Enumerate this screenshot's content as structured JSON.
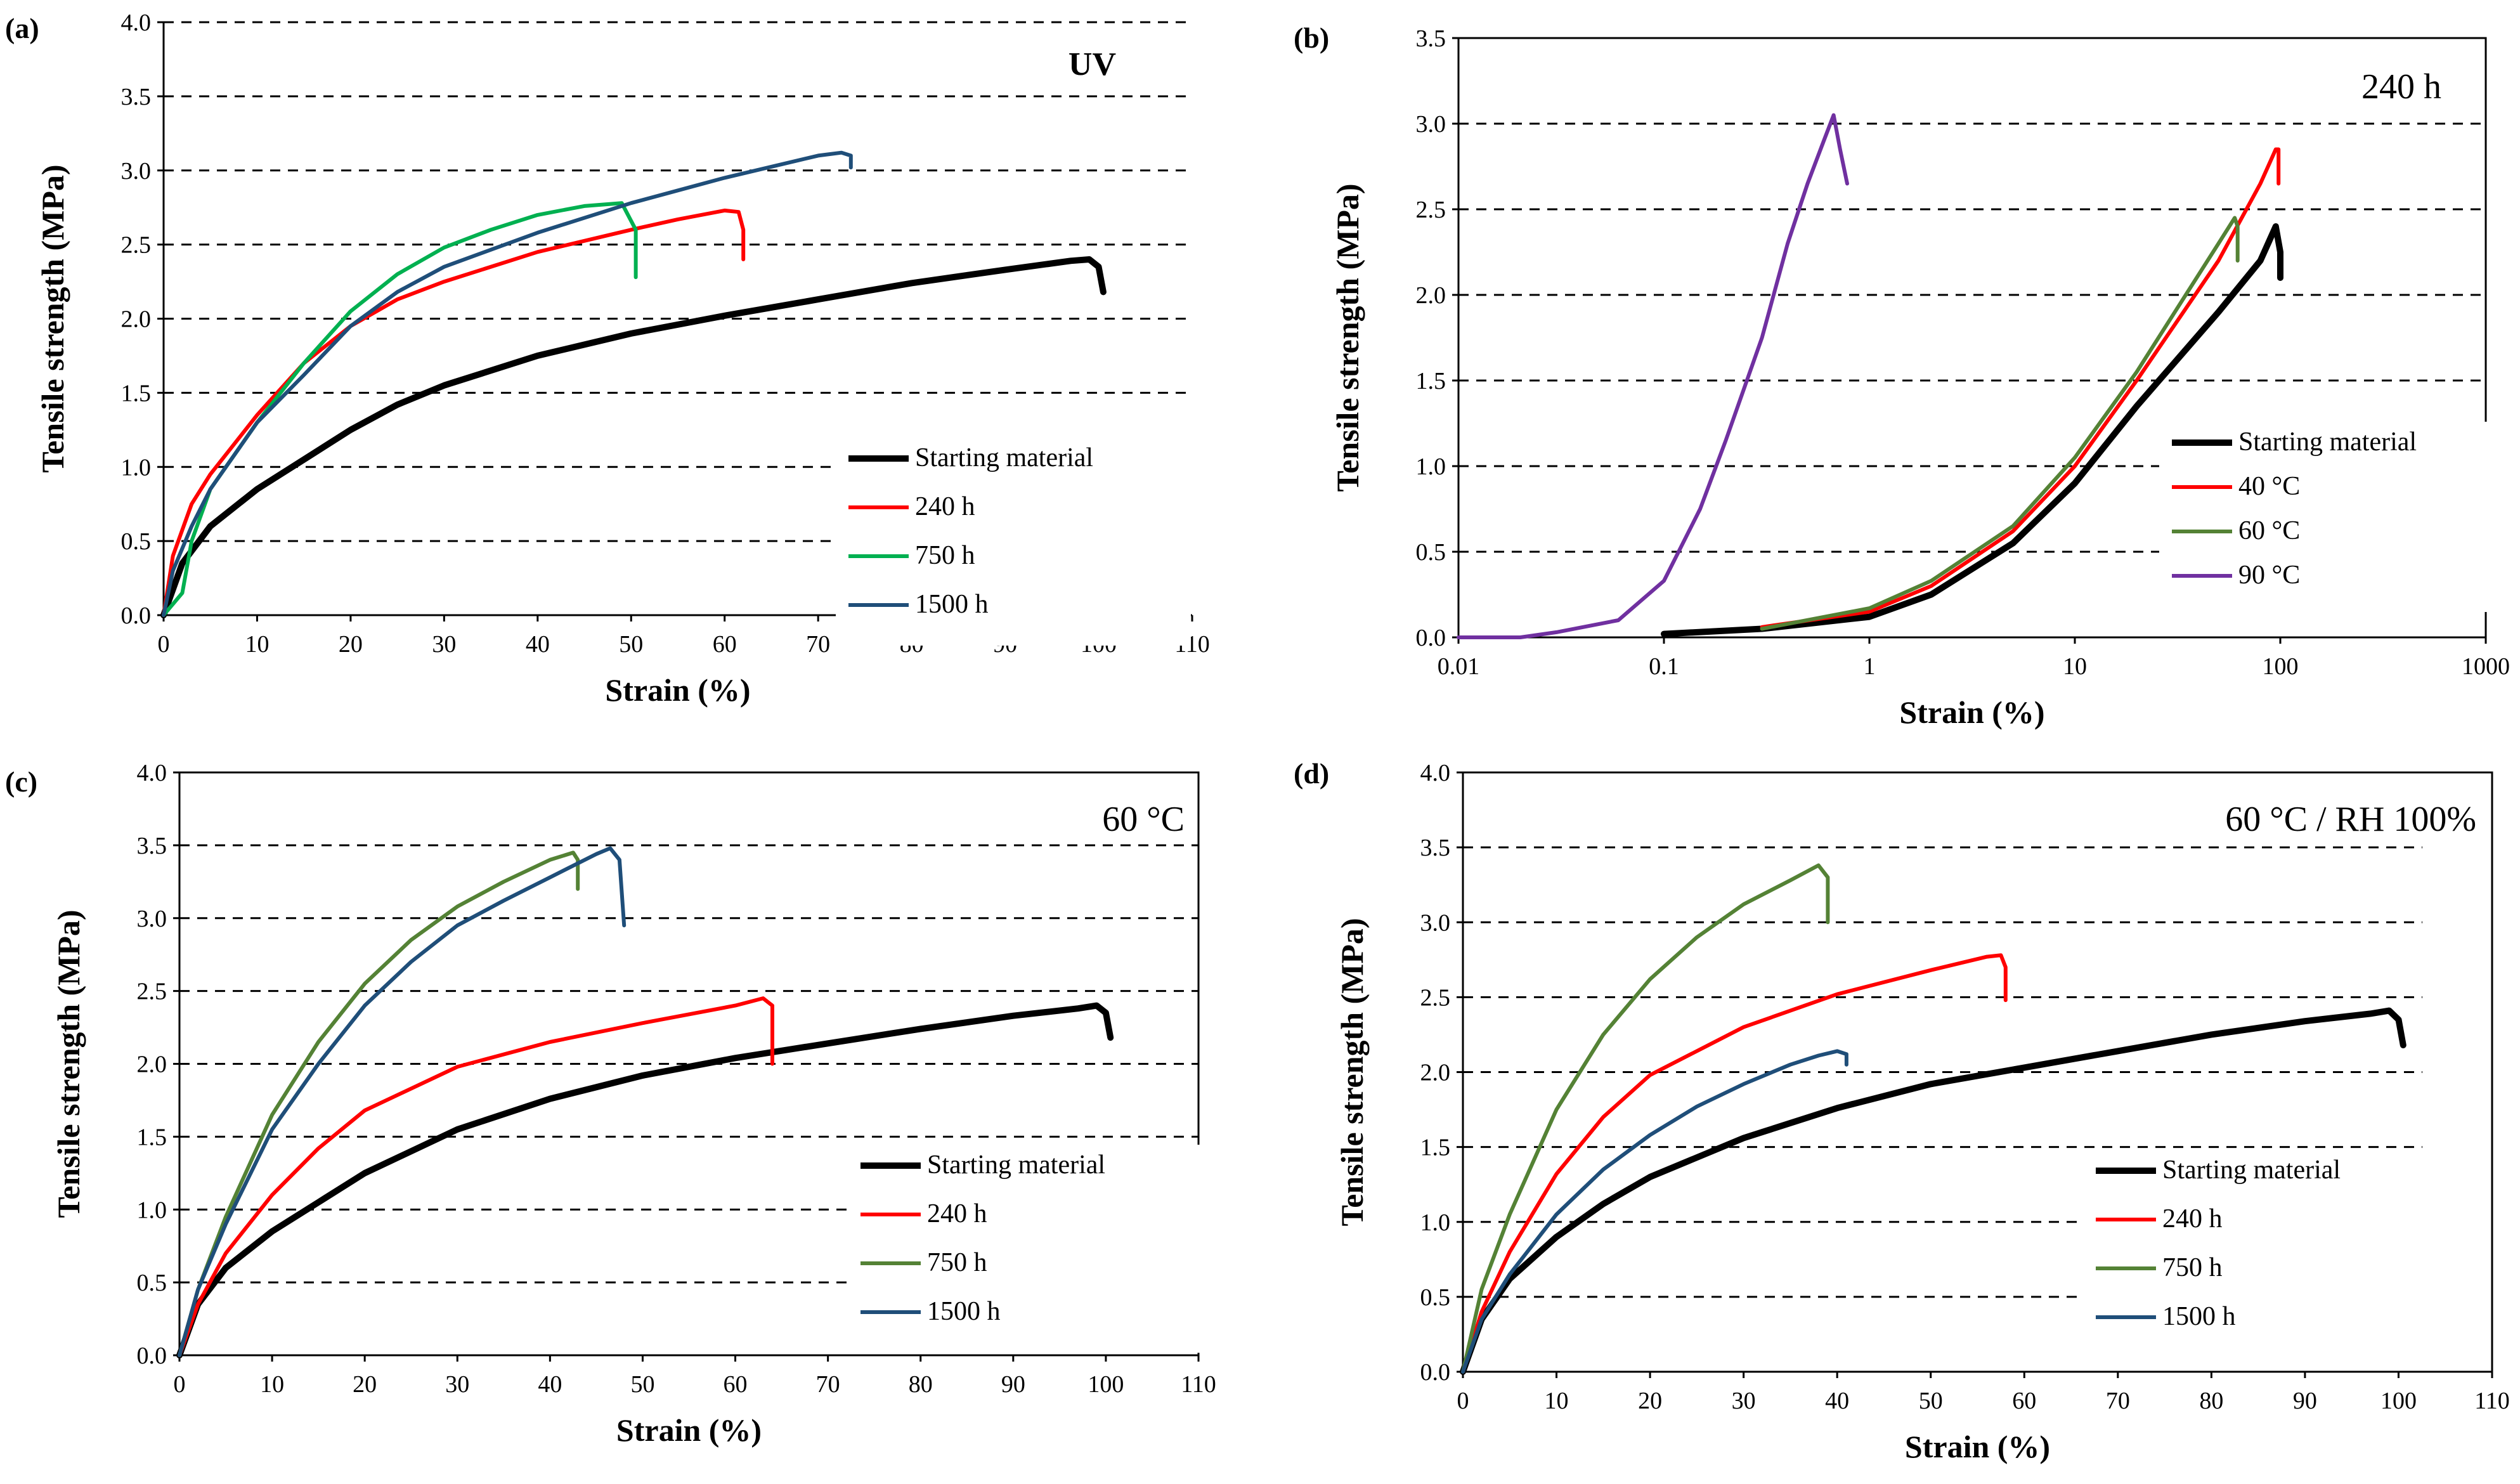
{
  "chart_data": [
    {
      "panel": "(a)",
      "type": "line",
      "annotation": "UV",
      "xlabel": "Strain (%)",
      "ylabel": "Tensile strength (MPa)",
      "xscale": "linear",
      "xlim": [
        0,
        110
      ],
      "ylim": [
        0,
        4.0
      ],
      "xticks": [
        "0",
        "10",
        "20",
        "30",
        "40",
        "50",
        "60",
        "70",
        "80",
        "90",
        "100",
        "110"
      ],
      "yticks": [
        "0.0",
        "0.5",
        "1.0",
        "1.5",
        "2.0",
        "2.5",
        "3.0",
        "3.5",
        "4.0"
      ],
      "grid": "horizontal dashed",
      "legend_position": "bottom-right",
      "series": [
        {
          "name": "Starting material",
          "color": "#000000",
          "width": "thick",
          "x": [
            0,
            2,
            5,
            10,
            15,
            20,
            25,
            30,
            40,
            50,
            60,
            70,
            80,
            90,
            97,
            99,
            100,
            100.5
          ],
          "y": [
            0,
            0.35,
            0.6,
            0.85,
            1.05,
            1.25,
            1.42,
            1.55,
            1.75,
            1.9,
            2.02,
            2.13,
            2.24,
            2.33,
            2.39,
            2.4,
            2.35,
            2.18
          ]
        },
        {
          "name": "240 h",
          "color": "#ff0000",
          "x": [
            0,
            1,
            3,
            5,
            10,
            15,
            20,
            25,
            30,
            40,
            50,
            55,
            60,
            61.5,
            62,
            62
          ],
          "y": [
            0,
            0.4,
            0.75,
            0.95,
            1.35,
            1.7,
            1.95,
            2.13,
            2.25,
            2.45,
            2.6,
            2.67,
            2.73,
            2.72,
            2.6,
            2.4
          ]
        },
        {
          "name": "750 h",
          "color": "#00b050",
          "x": [
            0,
            2,
            3,
            5,
            10,
            15,
            20,
            25,
            30,
            35,
            40,
            45,
            49,
            50.5,
            50.5
          ],
          "y": [
            0,
            0.15,
            0.5,
            0.85,
            1.3,
            1.7,
            2.05,
            2.3,
            2.48,
            2.6,
            2.7,
            2.76,
            2.78,
            2.6,
            2.28
          ]
        },
        {
          "name": "1500 h",
          "color": "#1f4e79",
          "x": [
            0,
            1,
            3,
            5,
            10,
            15,
            20,
            25,
            30,
            40,
            50,
            60,
            70,
            72.5,
            73.5,
            73.5
          ],
          "y": [
            0,
            0.3,
            0.6,
            0.85,
            1.3,
            1.62,
            1.95,
            2.18,
            2.35,
            2.58,
            2.78,
            2.95,
            3.1,
            3.12,
            3.1,
            3.02
          ]
        }
      ]
    },
    {
      "panel": "(b)",
      "type": "line",
      "annotation": "240 h",
      "xlabel": "Strain (%)",
      "ylabel": "Tensile strength (MPa)",
      "xscale": "log",
      "xlim": [
        0.01,
        1000
      ],
      "ylim": [
        0,
        3.5
      ],
      "xticks": [
        "0.01",
        "0.1",
        "1",
        "10",
        "100",
        "1000"
      ],
      "yticks": [
        "0.0",
        "0.5",
        "1.0",
        "1.5",
        "2.0",
        "2.5",
        "3.0",
        "3.5"
      ],
      "grid": "horizontal dashed",
      "legend_position": "bottom-right",
      "series": [
        {
          "name": "Starting material",
          "color": "#000000",
          "width": "thick",
          "x": [
            0.1,
            0.3,
            1,
            2,
            5,
            10,
            20,
            50,
            80,
            95,
            100,
            100
          ],
          "y": [
            0.02,
            0.05,
            0.12,
            0.25,
            0.55,
            0.9,
            1.35,
            1.9,
            2.2,
            2.4,
            2.25,
            2.1
          ]
        },
        {
          "name": "40 °C",
          "color": "#ff0000",
          "x": [
            0.3,
            1,
            2,
            5,
            10,
            20,
            50,
            80,
            95,
            98,
            98
          ],
          "y": [
            0.06,
            0.15,
            0.3,
            0.62,
            1.0,
            1.5,
            2.2,
            2.65,
            2.85,
            2.85,
            2.65
          ]
        },
        {
          "name": "60 °C",
          "color": "#548235",
          "x": [
            0.3,
            1,
            2,
            5,
            10,
            20,
            50,
            60,
            62,
            62
          ],
          "y": [
            0.05,
            0.17,
            0.33,
            0.65,
            1.05,
            1.55,
            2.3,
            2.45,
            2.4,
            2.2
          ]
        },
        {
          "name": "90 °C",
          "color": "#7030a0",
          "x": [
            0.01,
            0.02,
            0.03,
            0.06,
            0.1,
            0.15,
            0.2,
            0.3,
            0.4,
            0.5,
            0.6,
            0.67,
            0.72,
            0.78
          ],
          "y": [
            0,
            0,
            0.03,
            0.1,
            0.33,
            0.75,
            1.15,
            1.75,
            2.3,
            2.65,
            2.9,
            3.05,
            2.85,
            2.65
          ]
        }
      ]
    },
    {
      "panel": "(c)",
      "type": "line",
      "annotation": "60 °C",
      "xlabel": "Strain (%)",
      "ylabel": "Tensile strength (MPa)",
      "xscale": "linear",
      "xlim": [
        0,
        110
      ],
      "ylim": [
        0,
        4.0
      ],
      "xticks": [
        "0",
        "10",
        "20",
        "30",
        "40",
        "50",
        "60",
        "70",
        "80",
        "90",
        "100",
        "110"
      ],
      "yticks": [
        "0.0",
        "0.5",
        "1.0",
        "1.5",
        "2.0",
        "2.5",
        "3.0",
        "3.5",
        "4.0"
      ],
      "grid": "horizontal dashed",
      "legend_position": "bottom-right",
      "series": [
        {
          "name": "Starting material",
          "color": "#000000",
          "width": "thick",
          "x": [
            0,
            2,
            5,
            10,
            15,
            20,
            30,
            40,
            50,
            60,
            70,
            80,
            90,
            97,
            99,
            100,
            100.5
          ],
          "y": [
            0,
            0.35,
            0.6,
            0.85,
            1.05,
            1.25,
            1.55,
            1.76,
            1.92,
            2.04,
            2.14,
            2.24,
            2.33,
            2.38,
            2.4,
            2.35,
            2.18
          ]
        },
        {
          "name": "240 h",
          "color": "#ff0000",
          "x": [
            0,
            2,
            5,
            10,
            15,
            20,
            30,
            40,
            50,
            60,
            63,
            64,
            64
          ],
          "y": [
            0,
            0.35,
            0.7,
            1.1,
            1.42,
            1.68,
            1.98,
            2.15,
            2.28,
            2.4,
            2.45,
            2.4,
            2.0
          ]
        },
        {
          "name": "750 h",
          "color": "#548235",
          "x": [
            0,
            2,
            5,
            10,
            15,
            20,
            25,
            30,
            35,
            40,
            42.5,
            43,
            43
          ],
          "y": [
            0,
            0.45,
            0.95,
            1.65,
            2.15,
            2.55,
            2.85,
            3.08,
            3.25,
            3.4,
            3.45,
            3.4,
            3.2
          ]
        },
        {
          "name": "1500 h",
          "color": "#1f4e79",
          "x": [
            0,
            2,
            5,
            10,
            15,
            20,
            25,
            30,
            35,
            40,
            45,
            46.5,
            47.5,
            48
          ],
          "y": [
            0,
            0.45,
            0.9,
            1.55,
            2.0,
            2.4,
            2.7,
            2.95,
            3.12,
            3.28,
            3.44,
            3.48,
            3.4,
            2.95
          ]
        }
      ]
    },
    {
      "panel": "(d)",
      "type": "line",
      "annotation": "60 °C / RH 100%",
      "xlabel": "Strain (%)",
      "ylabel": "Tensile strength (MPa)",
      "xscale": "linear",
      "xlim": [
        0,
        110
      ],
      "ylim": [
        0,
        4.0
      ],
      "xticks": [
        "0",
        "10",
        "20",
        "30",
        "40",
        "50",
        "60",
        "70",
        "80",
        "90",
        "100",
        "110"
      ],
      "yticks": [
        "0.0",
        "0.5",
        "1.0",
        "1.5",
        "2.0",
        "2.5",
        "3.0",
        "3.5",
        "4.0"
      ],
      "grid": "horizontal dashed",
      "legend_position": "bottom-right",
      "series": [
        {
          "name": "Starting material",
          "color": "#000000",
          "width": "thick",
          "x": [
            0,
            2,
            5,
            10,
            15,
            20,
            30,
            40,
            50,
            60,
            70,
            80,
            90,
            97,
            99,
            100,
            100.5
          ],
          "y": [
            0,
            0.35,
            0.62,
            0.9,
            1.12,
            1.3,
            1.56,
            1.76,
            1.92,
            2.03,
            2.14,
            2.25,
            2.34,
            2.39,
            2.41,
            2.35,
            2.18
          ]
        },
        {
          "name": "240 h",
          "color": "#ff0000",
          "x": [
            0,
            2,
            5,
            10,
            15,
            20,
            30,
            40,
            50,
            56,
            57.5,
            58,
            58
          ],
          "y": [
            0,
            0.4,
            0.8,
            1.32,
            1.7,
            1.98,
            2.3,
            2.52,
            2.68,
            2.77,
            2.78,
            2.7,
            2.48
          ]
        },
        {
          "name": "750 h",
          "color": "#548235",
          "x": [
            0,
            2,
            5,
            10,
            15,
            20,
            25,
            30,
            35,
            38,
            39,
            39
          ],
          "y": [
            0,
            0.55,
            1.05,
            1.75,
            2.25,
            2.62,
            2.9,
            3.12,
            3.28,
            3.38,
            3.3,
            3.0
          ]
        },
        {
          "name": "1500 h",
          "color": "#1f4e79",
          "x": [
            0,
            2,
            5,
            10,
            15,
            20,
            25,
            30,
            35,
            38,
            40,
            41,
            41
          ],
          "y": [
            0,
            0.35,
            0.65,
            1.05,
            1.35,
            1.58,
            1.77,
            1.92,
            2.05,
            2.11,
            2.14,
            2.12,
            2.05
          ]
        }
      ]
    }
  ]
}
